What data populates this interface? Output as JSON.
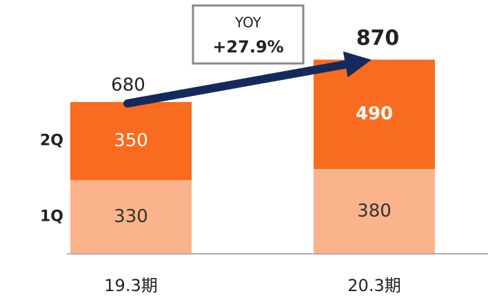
{
  "chart_data": {
    "type": "stacked_bar",
    "categories": [
      "19.3期",
      "20.3期"
    ],
    "series": [
      {
        "name": "1Q",
        "color": "#fbb38c",
        "values": [
          330,
          380
        ]
      },
      {
        "name": "2Q",
        "color": "#f96b1e",
        "values": [
          350,
          490
        ]
      }
    ],
    "totals": [
      680,
      870
    ],
    "ylim": [
      0,
      1100
    ],
    "annotation": {
      "label": "YOY",
      "value": "+27.9%"
    }
  }
}
